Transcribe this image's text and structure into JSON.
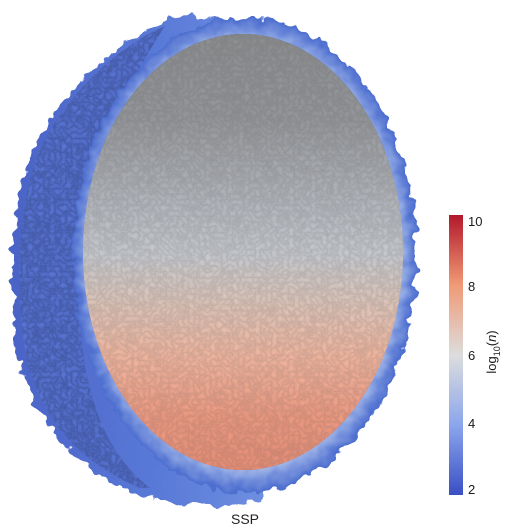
{
  "colorbar": {
    "ticks": [
      "10",
      "8",
      "6",
      "4",
      "2"
    ],
    "title_prefix": "log",
    "title_sub": "10",
    "title_open": "(",
    "title_var": "n",
    "title_close": ")",
    "range": [
      2,
      10
    ],
    "colors": {
      "low": "#3a4fc4",
      "mid": "#dcdcdc",
      "high": "#b2182b"
    }
  },
  "surface": {
    "mean_color_top": "#5c5e62",
    "mean_color_bottom": "#e0553a",
    "rim_color": "#4f72d4",
    "back_shell_color": "#4e6fd0"
  },
  "caption": "SSP"
}
